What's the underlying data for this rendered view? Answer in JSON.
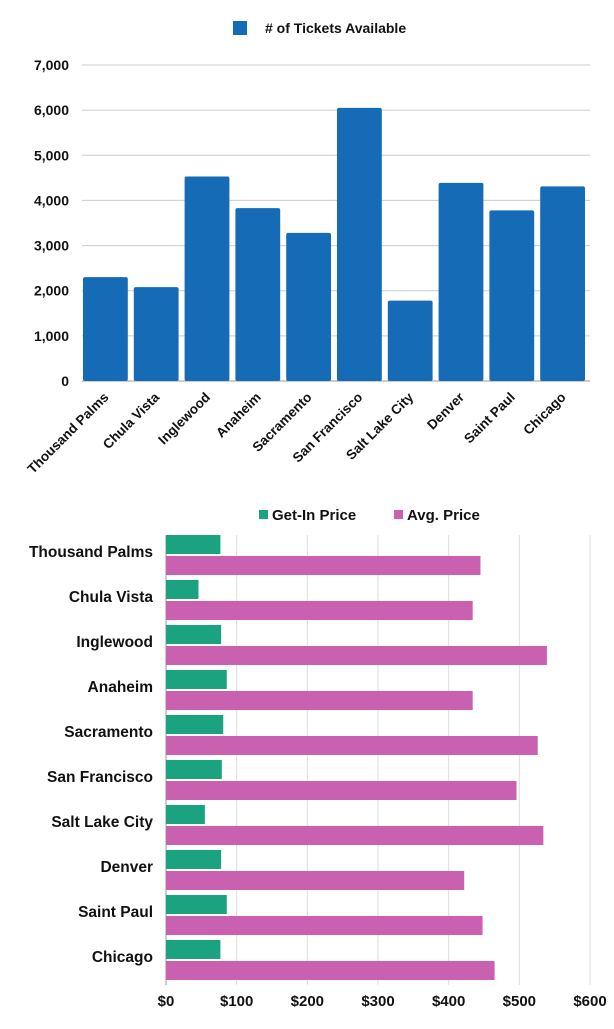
{
  "chart_data": [
    {
      "type": "bar",
      "orientation": "vertical",
      "legend": {
        "position": "top",
        "entries": [
          "# of Tickets Available"
        ]
      },
      "categories": [
        "Thousand Palms",
        "Chula Vista",
        "Inglewood",
        "Anaheim",
        "Sacramento",
        "San Francisco",
        "Salt Lake City",
        "Denver",
        "Saint Paul",
        "Chicago"
      ],
      "series": [
        {
          "name": "# of Tickets Available",
          "color": "#166bb7",
          "values": [
            2300,
            2080,
            4530,
            3830,
            3280,
            6050,
            1780,
            4390,
            3780,
            4310
          ]
        }
      ],
      "ylim": [
        0,
        7000
      ],
      "yticks": [
        "0",
        "1,000",
        "2,000",
        "3,000",
        "4,000",
        "5,000",
        "6,000",
        "7,000"
      ],
      "grid": true
    },
    {
      "type": "bar",
      "orientation": "horizontal",
      "legend": {
        "position": "top",
        "entries": [
          "Get-In Price",
          "Avg. Price"
        ]
      },
      "categories": [
        "Thousand Palms",
        "Chula Vista",
        "Inglewood",
        "Anaheim",
        "Sacramento",
        "San Francisco",
        "Salt Lake City",
        "Denver",
        "Saint Paul",
        "Chicago"
      ],
      "series": [
        {
          "name": "Get-In Price",
          "color": "#1ba27f",
          "values": [
            77,
            46,
            78,
            86,
            81,
            79,
            55,
            78,
            86,
            77
          ]
        },
        {
          "name": "Avg. Price",
          "color": "#c960b0",
          "values": [
            445,
            434,
            539,
            434,
            526,
            496,
            534,
            422,
            448,
            465
          ]
        }
      ],
      "xlim": [
        0,
        600
      ],
      "xticks": [
        "$0",
        "$100",
        "$200",
        "$300",
        "$400",
        "$500",
        "$600"
      ],
      "grid": true
    }
  ]
}
